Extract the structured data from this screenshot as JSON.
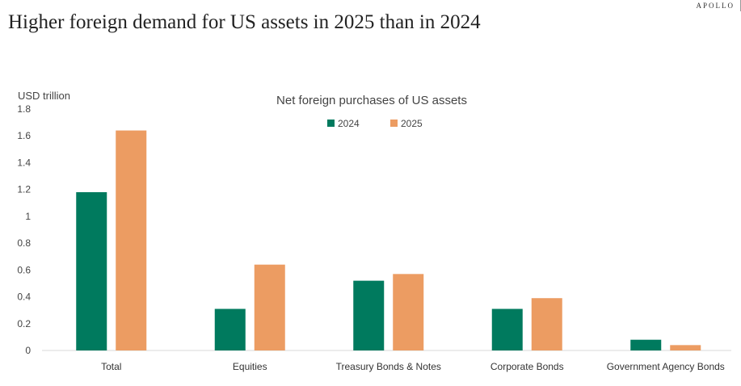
{
  "headline": "Higher foreign demand for US assets in 2025 than in 2024",
  "brand": "APOLLO",
  "chart_data": {
    "type": "bar",
    "title": "Net foreign purchases of US assets",
    "ylabel": "USD trillion",
    "xlabel": "",
    "ylim": [
      0,
      1.8
    ],
    "yticks": [
      0,
      0.2,
      0.4,
      0.6,
      0.8,
      1,
      1.2,
      1.4,
      1.6,
      1.8
    ],
    "categories": [
      "Total",
      "Equities",
      "Treasury Bonds & Notes",
      "Corporate Bonds",
      "Government Agency Bonds"
    ],
    "series": [
      {
        "name": "2024",
        "color": "#007a5e",
        "values": [
          1.18,
          0.31,
          0.52,
          0.31,
          0.08
        ]
      },
      {
        "name": "2025",
        "color": "#ec9c62",
        "values": [
          1.64,
          0.64,
          0.57,
          0.39,
          0.04
        ]
      }
    ],
    "legend_position": "top-center",
    "grid": false
  }
}
